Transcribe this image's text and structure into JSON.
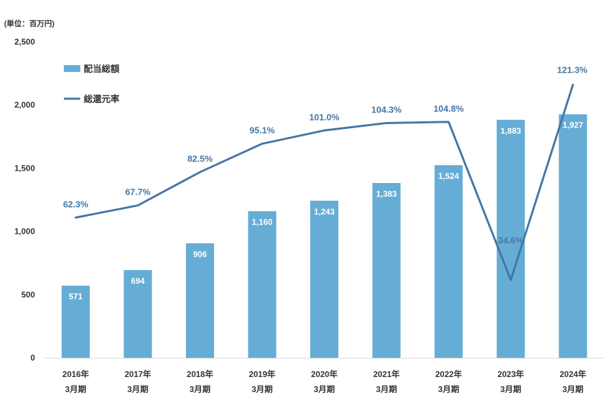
{
  "unit_label": "(単位：百万円)",
  "chart_data": {
    "type": "bar",
    "categories": [
      [
        "2016年",
        "3月期"
      ],
      [
        "2017年",
        "3月期"
      ],
      [
        "2018年",
        "3月期"
      ],
      [
        "2019年",
        "3月期"
      ],
      [
        "2020年",
        "3月期"
      ],
      [
        "2021年",
        "3月期"
      ],
      [
        "2022年",
        "3月期"
      ],
      [
        "2023年",
        "3月期"
      ],
      [
        "2024年",
        "3月期"
      ]
    ],
    "series": [
      {
        "name": "配当総額",
        "type": "bar",
        "color": "#65ADD5",
        "values": [
          571,
          694,
          906,
          1160,
          1243,
          1383,
          1524,
          1883,
          1927
        ],
        "labels": [
          "571",
          "694",
          "906",
          "1,160",
          "1,243",
          "1,383",
          "1,524",
          "1,883",
          "1,927"
        ]
      },
      {
        "name": "総還元率",
        "type": "line",
        "color": "#4576A6",
        "values": [
          62.3,
          67.7,
          82.5,
          95.1,
          101.0,
          104.3,
          104.8,
          34.6,
          121.3
        ],
        "labels": [
          "62.3%",
          "67.7%",
          "82.5%",
          "95.1%",
          "101.0%",
          "104.3%",
          "104.8%",
          "34.6%",
          "121.3%"
        ]
      }
    ],
    "y_axis": {
      "ylim": [
        0,
        2500
      ],
      "ticks": [
        0,
        500,
        1000,
        1500,
        2000,
        2500
      ],
      "tick_labels": [
        "0",
        "500",
        "1,000",
        "1,500",
        "2,000",
        "2,500"
      ]
    },
    "legend_position": "top-left",
    "grid": false
  }
}
